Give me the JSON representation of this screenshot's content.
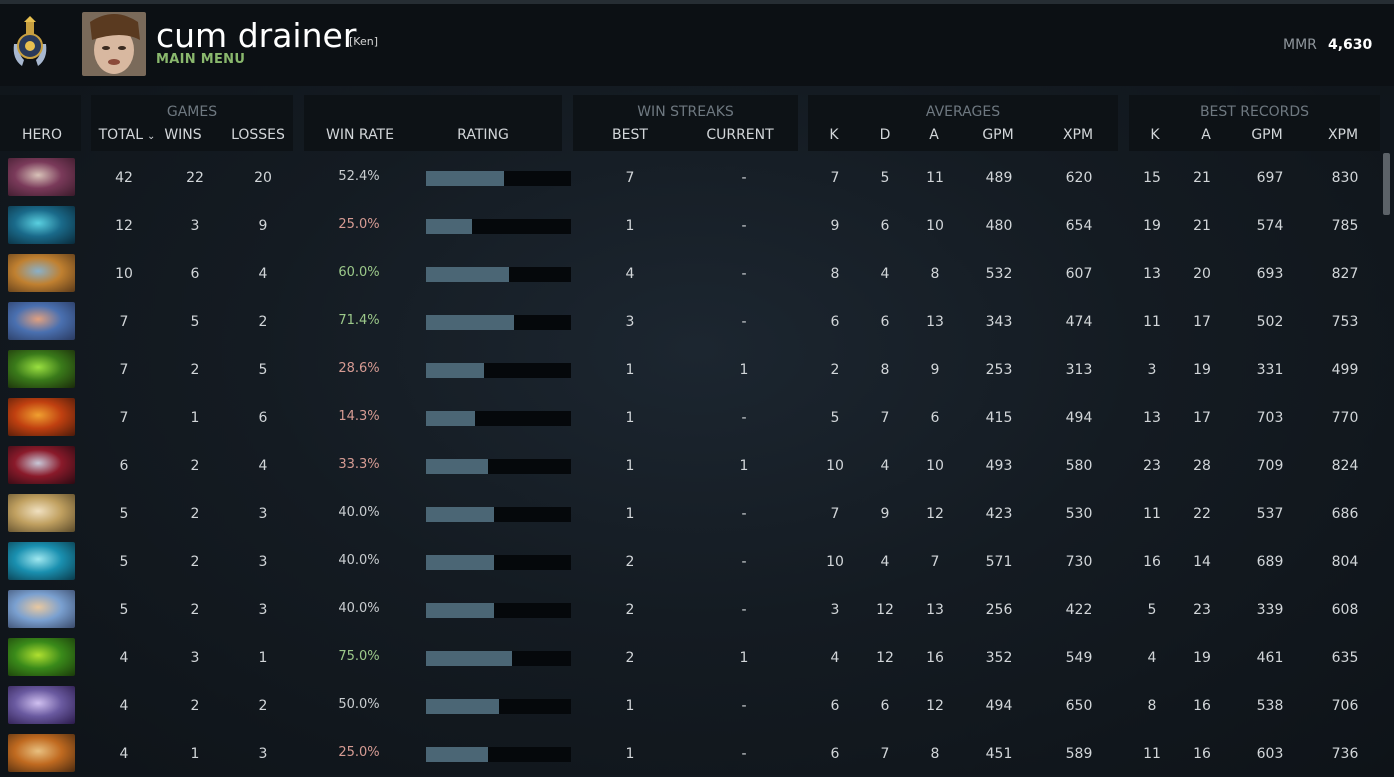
{
  "player": {
    "name": "cum drainer",
    "tag": "[Ken]",
    "menu_label": "MAIN MENU",
    "mmr_label": "MMR",
    "mmr_value": "4,630"
  },
  "groups": {
    "games": "GAMES",
    "win_streaks": "WIN STREAKS",
    "averages": "AVERAGES",
    "best_records": "BEST RECORDS"
  },
  "columns": {
    "hero": "HERO",
    "total": "TOTAL",
    "wins": "WINS",
    "losses": "LOSSES",
    "win_rate": "WIN RATE",
    "rating": "RATING",
    "best": "BEST",
    "current": "CURRENT",
    "avg_k": "K",
    "avg_d": "D",
    "avg_a": "A",
    "avg_gpm": "GPM",
    "avg_xpm": "XPM",
    "best_k": "K",
    "best_a": "A",
    "best_gpm": "GPM",
    "best_xpm": "XPM"
  },
  "sort_icon": "chevron-down-icon",
  "colors": {
    "win_good": "#9cc98a",
    "win_bad": "#d69b93",
    "rating_bar": "#4b6675",
    "menu_green": "#8ab86d"
  },
  "rows": [
    {
      "total": "42",
      "wins": "22",
      "losses": "20",
      "win_rate": "52.4%",
      "rating": 0.54,
      "best": "7",
      "current": "-",
      "k": "7",
      "d": "5",
      "a": "11",
      "gpm": "489",
      "xpm": "620",
      "bk": "15",
      "ba": "21",
      "bgpm": "697",
      "bxpm": "830",
      "tone": "neutral",
      "portrait": [
        "#7a3a5a",
        "#d8c2b8",
        "#3a1a2a"
      ]
    },
    {
      "total": "12",
      "wins": "3",
      "losses": "9",
      "win_rate": "25.0%",
      "rating": 0.32,
      "best": "1",
      "current": "-",
      "k": "9",
      "d": "6",
      "a": "10",
      "gpm": "480",
      "xpm": "654",
      "bk": "19",
      "ba": "21",
      "bgpm": "574",
      "bxpm": "785",
      "tone": "bad",
      "portrait": [
        "#1a6a8a",
        "#5ad0e0",
        "#0a2a3a"
      ]
    },
    {
      "total": "10",
      "wins": "6",
      "losses": "4",
      "win_rate": "60.0%",
      "rating": 0.57,
      "best": "4",
      "current": "-",
      "k": "8",
      "d": "4",
      "a": "8",
      "gpm": "532",
      "xpm": "607",
      "bk": "13",
      "ba": "20",
      "bgpm": "693",
      "bxpm": "827",
      "tone": "good",
      "portrait": [
        "#c08030",
        "#8ab0c8",
        "#5a3a1a"
      ]
    },
    {
      "total": "7",
      "wins": "5",
      "losses": "2",
      "win_rate": "71.4%",
      "rating": 0.61,
      "best": "3",
      "current": "-",
      "k": "6",
      "d": "6",
      "a": "13",
      "gpm": "343",
      "xpm": "474",
      "bk": "11",
      "ba": "17",
      "bgpm": "502",
      "bxpm": "753",
      "tone": "good",
      "portrait": [
        "#4a70b0",
        "#e0a080",
        "#2a3a60"
      ]
    },
    {
      "total": "7",
      "wins": "2",
      "losses": "5",
      "win_rate": "28.6%",
      "rating": 0.4,
      "best": "1",
      "current": "1",
      "k": "2",
      "d": "8",
      "a": "9",
      "gpm": "253",
      "xpm": "313",
      "bk": "3",
      "ba": "19",
      "bgpm": "331",
      "bxpm": "499",
      "tone": "bad",
      "portrait": [
        "#3a7a1a",
        "#9ae040",
        "#1a2a0a"
      ]
    },
    {
      "total": "7",
      "wins": "1",
      "losses": "6",
      "win_rate": "14.3%",
      "rating": 0.34,
      "best": "1",
      "current": "-",
      "k": "5",
      "d": "7",
      "a": "6",
      "gpm": "415",
      "xpm": "494",
      "bk": "13",
      "ba": "17",
      "bgpm": "703",
      "bxpm": "770",
      "tone": "bad",
      "portrait": [
        "#c04010",
        "#f0a030",
        "#4a1a0a"
      ]
    },
    {
      "total": "6",
      "wins": "2",
      "losses": "4",
      "win_rate": "33.3%",
      "rating": 0.43,
      "best": "1",
      "current": "1",
      "k": "10",
      "d": "4",
      "a": "10",
      "gpm": "493",
      "xpm": "580",
      "bk": "23",
      "ba": "28",
      "bgpm": "709",
      "bxpm": "824",
      "tone": "bad",
      "portrait": [
        "#8a1a2a",
        "#c8c8d8",
        "#2a0a12"
      ]
    },
    {
      "total": "5",
      "wins": "2",
      "losses": "3",
      "win_rate": "40.0%",
      "rating": 0.47,
      "best": "1",
      "current": "-",
      "k": "7",
      "d": "9",
      "a": "12",
      "gpm": "423",
      "xpm": "530",
      "bk": "11",
      "ba": "22",
      "bgpm": "537",
      "bxpm": "686",
      "tone": "neutral",
      "portrait": [
        "#c0a060",
        "#f0e0c0",
        "#5a4a2a"
      ]
    },
    {
      "total": "5",
      "wins": "2",
      "losses": "3",
      "win_rate": "40.0%",
      "rating": 0.47,
      "best": "2",
      "current": "-",
      "k": "10",
      "d": "4",
      "a": "7",
      "gpm": "571",
      "xpm": "730",
      "bk": "16",
      "ba": "14",
      "bgpm": "689",
      "bxpm": "804",
      "tone": "neutral",
      "portrait": [
        "#1a90b0",
        "#a0e8f0",
        "#0a3a4a"
      ]
    },
    {
      "total": "5",
      "wins": "2",
      "losses": "3",
      "win_rate": "40.0%",
      "rating": 0.47,
      "best": "2",
      "current": "-",
      "k": "3",
      "d": "12",
      "a": "13",
      "gpm": "256",
      "xpm": "422",
      "bk": "5",
      "ba": "23",
      "bgpm": "339",
      "bxpm": "608",
      "tone": "neutral",
      "portrait": [
        "#7aa0d0",
        "#e8c8a0",
        "#3a4a6a"
      ]
    },
    {
      "total": "4",
      "wins": "3",
      "losses": "1",
      "win_rate": "75.0%",
      "rating": 0.59,
      "best": "2",
      "current": "1",
      "k": "4",
      "d": "12",
      "a": "16",
      "gpm": "352",
      "xpm": "549",
      "bk": "4",
      "ba": "19",
      "bgpm": "461",
      "bxpm": "635",
      "tone": "good",
      "portrait": [
        "#3a8a1a",
        "#b0e030",
        "#1a3a0a"
      ]
    },
    {
      "total": "4",
      "wins": "2",
      "losses": "2",
      "win_rate": "50.0%",
      "rating": 0.5,
      "best": "1",
      "current": "-",
      "k": "6",
      "d": "6",
      "a": "12",
      "gpm": "494",
      "xpm": "650",
      "bk": "8",
      "ba": "16",
      "bgpm": "538",
      "bxpm": "706",
      "tone": "neutral",
      "portrait": [
        "#6a5aa0",
        "#d0c0f0",
        "#2a1a4a"
      ]
    },
    {
      "total": "4",
      "wins": "1",
      "losses": "3",
      "win_rate": "25.0%",
      "rating": 0.43,
      "best": "1",
      "current": "-",
      "k": "6",
      "d": "7",
      "a": "8",
      "gpm": "451",
      "xpm": "589",
      "bk": "11",
      "ba": "16",
      "bgpm": "603",
      "bxpm": "736",
      "tone": "bad",
      "portrait": [
        "#c06a20",
        "#e8c080",
        "#4a2a10"
      ]
    }
  ]
}
